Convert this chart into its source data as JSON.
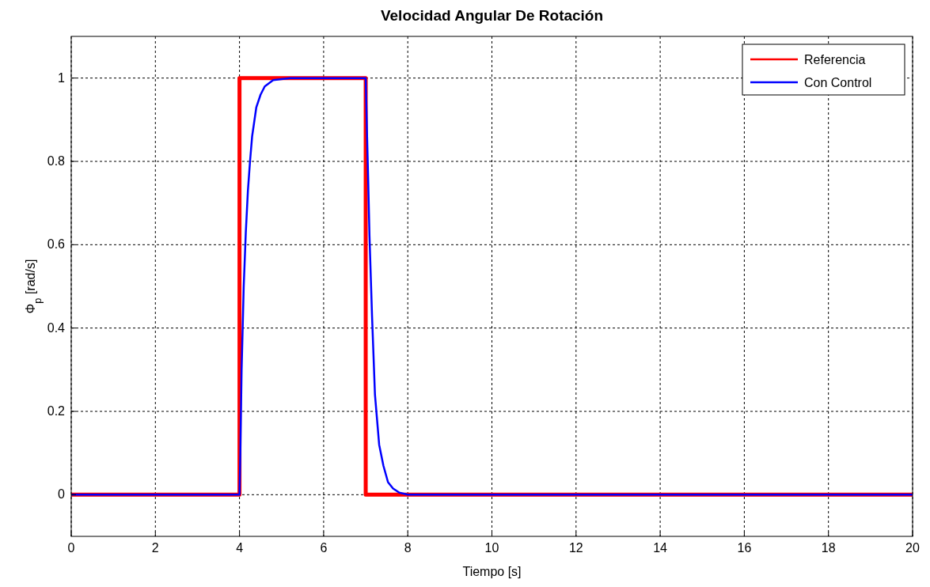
{
  "chart_data": {
    "type": "line",
    "title": "Velocidad Angular De Rotación",
    "xlabel": "Tiempo [s]",
    "ylabel": "Φ$_{p}$ [rad/s]",
    "xlim": [
      0,
      20
    ],
    "xticks": [
      0,
      2,
      4,
      6,
      8,
      10,
      12,
      14,
      16,
      18,
      20
    ],
    "ylim": [
      -0.1,
      1.1
    ],
    "yticks": [
      0,
      0.2,
      0.4,
      0.6,
      0.8,
      1
    ],
    "grid": true,
    "legend": "top right",
    "line_style": "solid",
    "marker": "none",
    "series": [
      {
        "name": "Referencia",
        "color": "#ff0000",
        "x": [
          0,
          4,
          4,
          7,
          7,
          20
        ],
        "values": [
          0,
          0,
          1,
          1,
          0,
          0
        ]
      },
      {
        "name": "Con Control",
        "color": "#0000ff",
        "x": [
          0,
          4,
          4.02,
          4.05,
          4.1,
          4.15,
          4.2,
          4.25,
          4.3,
          4.4,
          4.5,
          4.6,
          4.8,
          5.2,
          7,
          7.03,
          7.06,
          7.09,
          7.15,
          7.22,
          7.32,
          7.42,
          7.53,
          7.65,
          7.8,
          8,
          20
        ],
        "values": [
          0,
          0,
          0.1,
          0.3,
          0.5,
          0.63,
          0.73,
          0.8,
          0.86,
          0.93,
          0.96,
          0.98,
          0.995,
          1,
          1,
          0.87,
          0.75,
          0.62,
          0.43,
          0.24,
          0.12,
          0.07,
          0.03,
          0.015,
          0.005,
          0,
          0
        ]
      }
    ]
  }
}
